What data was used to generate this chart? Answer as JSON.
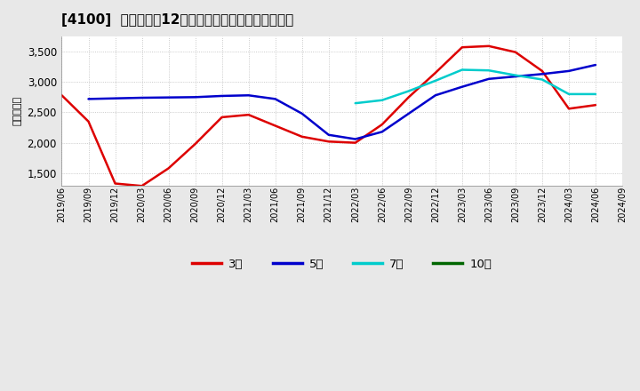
{
  "title": "[4100]  当期純利益12か月移動合計の標準偏差の推移",
  "ylabel": "（百万円）",
  "ylim": [
    1300,
    3750
  ],
  "yticks": [
    1500,
    2000,
    2500,
    3000,
    3500
  ],
  "figure_bg": "#e8e8e8",
  "plot_bg": "#ffffff",
  "grid_color": "#bbbbbb",
  "series": {
    "3年": {
      "color": "#dd0000",
      "dates": [
        "2019/06",
        "2019/09",
        "2019/12",
        "2020/03",
        "2020/06",
        "2020/09",
        "2020/12",
        "2021/03",
        "2021/06",
        "2021/09",
        "2021/12",
        "2022/03",
        "2022/06",
        "2022/09",
        "2022/12",
        "2023/03",
        "2023/06",
        "2023/09",
        "2023/12",
        "2024/03",
        "2024/06"
      ],
      "values": [
        2780,
        2350,
        1330,
        1290,
        1580,
        1980,
        2420,
        2460,
        2280,
        2100,
        2020,
        2000,
        2300,
        2750,
        3150,
        3570,
        3590,
        3490,
        3180,
        2560,
        2620
      ]
    },
    "5年": {
      "color": "#0000cc",
      "dates": [
        "2019/09",
        "2019/12",
        "2020/03",
        "2020/06",
        "2020/09",
        "2020/12",
        "2021/03",
        "2021/06",
        "2021/09",
        "2021/12",
        "2022/03",
        "2022/06",
        "2022/09",
        "2022/12",
        "2023/03",
        "2023/06",
        "2023/09",
        "2023/12",
        "2024/03",
        "2024/06"
      ],
      "values": [
        2720,
        2730,
        2740,
        2745,
        2750,
        2770,
        2780,
        2720,
        2480,
        2130,
        2060,
        2180,
        2480,
        2780,
        2920,
        3050,
        3090,
        3130,
        3180,
        3280
      ]
    },
    "7年": {
      "color": "#00cccc",
      "dates": [
        "2022/03",
        "2022/06",
        "2022/09",
        "2022/12",
        "2023/03",
        "2023/06",
        "2023/09",
        "2023/12",
        "2024/03",
        "2024/06"
      ],
      "values": [
        2650,
        2700,
        2850,
        3020,
        3200,
        3190,
        3110,
        3040,
        2800,
        2800
      ]
    },
    "10年": {
      "color": "#006600",
      "dates": [],
      "values": []
    }
  },
  "legend_labels": [
    "3年",
    "5年",
    "7年",
    "10年"
  ],
  "legend_colors": [
    "#dd0000",
    "#0000cc",
    "#00cccc",
    "#006600"
  ],
  "xtick_labels": [
    "2019/06",
    "2019/09",
    "2019/12",
    "2020/03",
    "2020/06",
    "2020/09",
    "2020/12",
    "2021/03",
    "2021/06",
    "2021/09",
    "2021/12",
    "2022/03",
    "2022/06",
    "2022/09",
    "2022/12",
    "2023/03",
    "2023/06",
    "2023/09",
    "2023/12",
    "2024/03",
    "2024/06",
    "2024/09"
  ]
}
